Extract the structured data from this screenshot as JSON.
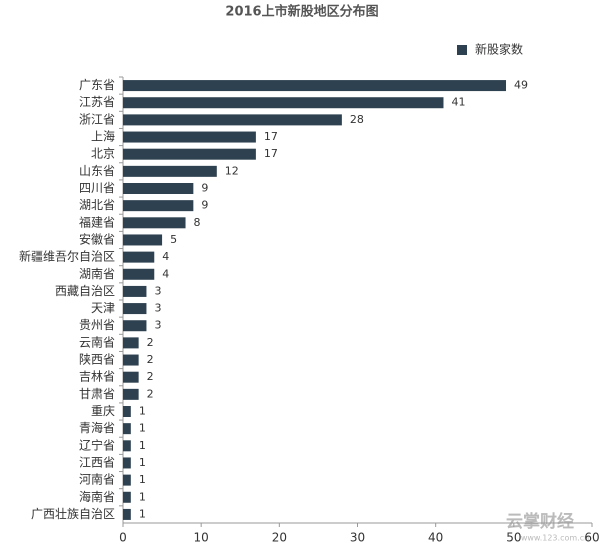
{
  "chart_data": {
    "type": "bar",
    "orientation": "horizontal",
    "title": "2016上市新股地区分布图",
    "series": [
      {
        "name": "新股家数",
        "color": "#2e4150",
        "values": [
          49,
          41,
          28,
          17,
          17,
          12,
          9,
          9,
          8,
          5,
          4,
          4,
          3,
          3,
          3,
          2,
          2,
          2,
          2,
          1,
          1,
          1,
          1,
          1,
          1,
          1
        ]
      }
    ],
    "categories": [
      "广东省",
      "江苏省",
      "浙江省",
      "上海",
      "北京",
      "山东省",
      "四川省",
      "湖北省",
      "福建省",
      "安徽省",
      "新疆维吾尔自治区",
      "湖南省",
      "西藏自治区",
      "天津",
      "贵州省",
      "云南省",
      "陕西省",
      "吉林省",
      "甘肃省",
      "重庆",
      "青海省",
      "辽宁省",
      "江西省",
      "河南省",
      "海南省",
      "广西壮族自治区"
    ],
    "xlim": [
      0,
      60
    ],
    "xticks": [
      0,
      10,
      20,
      30,
      40,
      50,
      60
    ],
    "legend": "top-right",
    "watermark": "云掌财经",
    "watermark_url": "www.123.com.cn"
  }
}
